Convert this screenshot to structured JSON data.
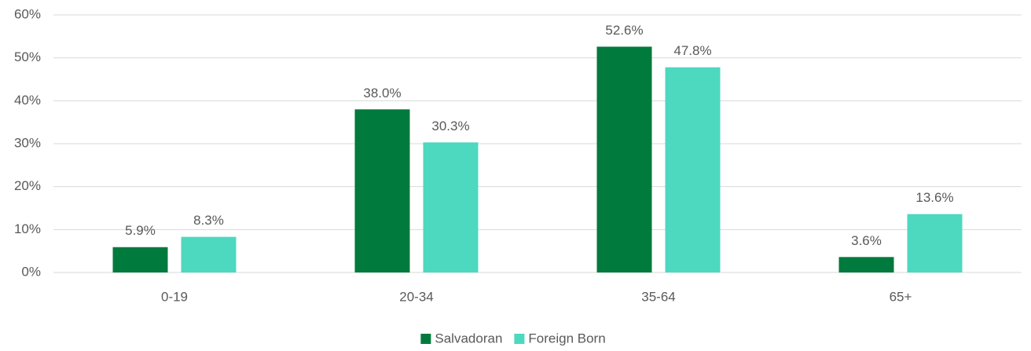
{
  "chart_data": {
    "type": "bar",
    "categories": [
      "0-19",
      "20-34",
      "35-64",
      "65+"
    ],
    "series": [
      {
        "name": "Salvadoran",
        "color": "#007a3d",
        "values": [
          5.9,
          38.0,
          52.6,
          3.6
        ],
        "value_labels": [
          "5.9%",
          "38.0%",
          "52.6%",
          "3.6%"
        ]
      },
      {
        "name": "Foreign Born",
        "color": "#4dd8c0",
        "values": [
          8.3,
          30.3,
          47.8,
          13.6
        ],
        "value_labels": [
          "8.3%",
          "30.3%",
          "47.8%",
          "13.6%"
        ]
      }
    ],
    "ylim": [
      0,
      60
    ],
    "yticks": [
      {
        "value": 0,
        "label": "0%"
      },
      {
        "value": 10,
        "label": "10%"
      },
      {
        "value": 20,
        "label": "20%"
      },
      {
        "value": 30,
        "label": "30%"
      },
      {
        "value": 40,
        "label": "40%"
      },
      {
        "value": 50,
        "label": "50%"
      },
      {
        "value": 60,
        "label": "60%"
      }
    ],
    "grid": true,
    "legend": "bottom"
  }
}
